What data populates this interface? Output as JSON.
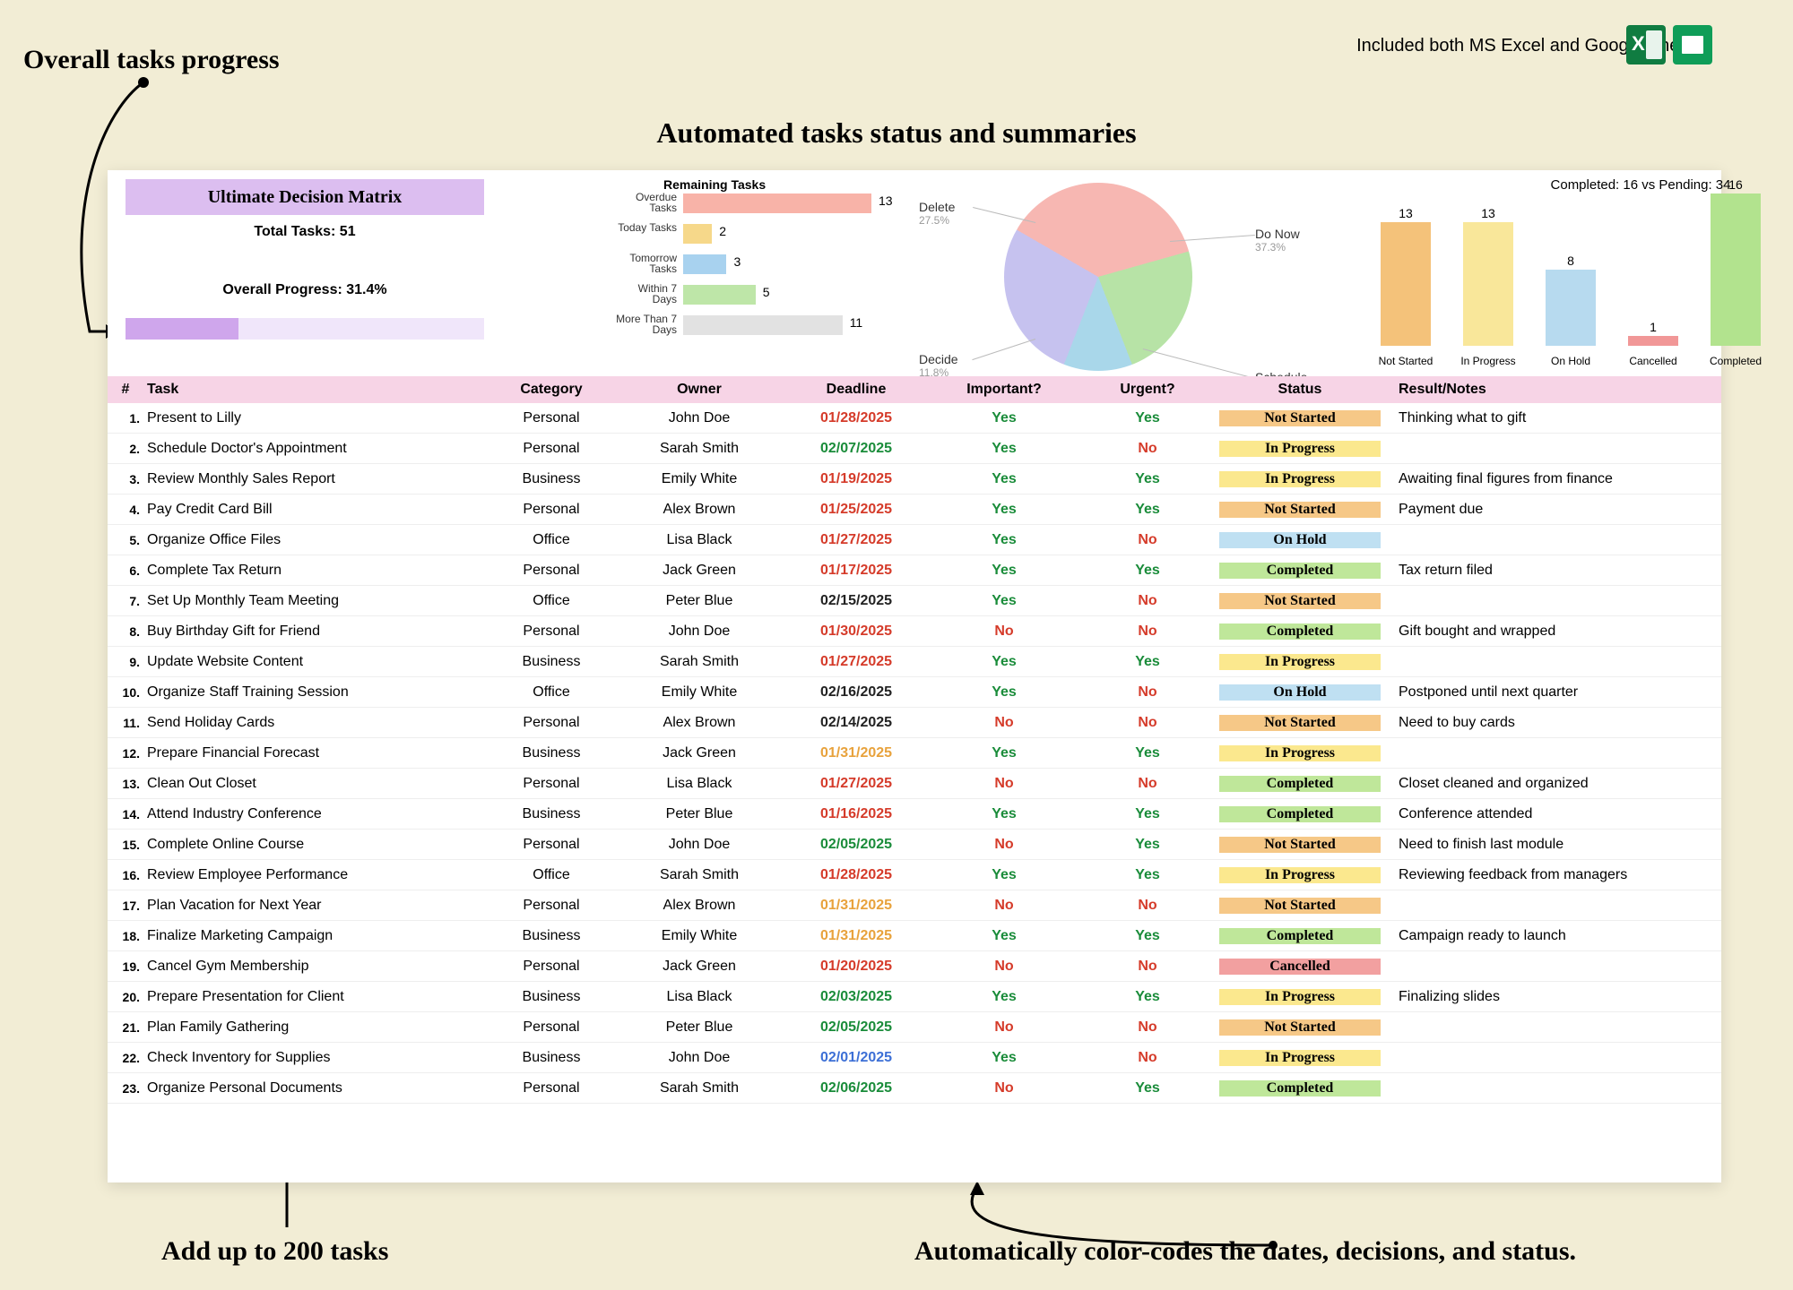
{
  "callouts": {
    "top_left": "Overall tasks progress",
    "title": "Automated tasks status and summaries",
    "bottom_left": "Add up to 200 tasks",
    "bottom_right": "Automatically color-codes the dates, decisions, and status.",
    "top_right_text": "Included both MS Excel and Google Sheets"
  },
  "matrix": {
    "title": "Ultimate Decision Matrix",
    "total_tasks_label": "Total Tasks: 51",
    "overall_progress_label": "Overall Progress: 31.4%",
    "overall_progress_pct": 31.4
  },
  "remaining_tasks": {
    "title": "Remaining Tasks",
    "max": 13,
    "rows": [
      {
        "label": "Overdue\nTasks",
        "value": 13,
        "color": "#f8b3a8"
      },
      {
        "label": "Today Tasks",
        "value": 2,
        "color": "#f6d88a"
      },
      {
        "label": "Tomorrow\nTasks",
        "value": 3,
        "color": "#a8d2ef"
      },
      {
        "label": "Within 7\nDays",
        "value": 5,
        "color": "#bee6a8"
      },
      {
        "label": "More Than 7\nDays",
        "value": 11,
        "color": "#e2e2e2"
      }
    ]
  },
  "pie": {
    "slices": [
      {
        "label": "Do Now",
        "pct": 37.3,
        "color": "#f7b7b2"
      },
      {
        "label": "Schedule",
        "pct": 23.5,
        "color": "#b7e3a6"
      },
      {
        "label": "Decide",
        "pct": 11.8,
        "color": "#a9d7ea"
      },
      {
        "label": "Delete",
        "pct": 27.5,
        "color": "#c6c2ef"
      }
    ]
  },
  "completed_vs_pending": {
    "title": "Completed: 16 vs Pending: 34",
    "max": 16,
    "bars": [
      {
        "label": "Not Started",
        "value": 13,
        "color": "#f4c27a"
      },
      {
        "label": "In Progress",
        "value": 13,
        "color": "#f9e79a"
      },
      {
        "label": "On Hold",
        "value": 8,
        "color": "#b7daef"
      },
      {
        "label": "Cancelled",
        "value": 1,
        "color": "#f19797"
      },
      {
        "label": "Completed",
        "value": 16,
        "color": "#b2e38e"
      }
    ]
  },
  "table": {
    "headers": [
      "#",
      "Task",
      "Category",
      "Owner",
      "Deadline",
      "Important?",
      "Urgent?",
      "Status",
      "Result/Notes"
    ],
    "deadline_colors": {
      "red": "#d53b2a",
      "green": "#1a8c3a",
      "orange": "#e8a23c",
      "blue": "#3c6fd6",
      "black": "#222222"
    },
    "yesno_colors": {
      "Yes": "#1a8c3a",
      "No": "#d53b2a"
    },
    "status_colors": {
      "Not Started": "#f6c887",
      "In Progress": "#fbe88e",
      "On Hold": "#bfe0f2",
      "Completed": "#bfe79a",
      "Cancelled": "#f2a0a0"
    },
    "rows": [
      {
        "n": 1,
        "task": "Present to Lilly",
        "cat": "Personal",
        "owner": "John Doe",
        "dl": "01/28/2025",
        "dlc": "red",
        "imp": "Yes",
        "urg": "Yes",
        "status": "Not Started",
        "notes": "Thinking what to gift"
      },
      {
        "n": 2,
        "task": "Schedule Doctor's Appointment",
        "cat": "Personal",
        "owner": "Sarah Smith",
        "dl": "02/07/2025",
        "dlc": "green",
        "imp": "Yes",
        "urg": "No",
        "status": "In Progress",
        "notes": ""
      },
      {
        "n": 3,
        "task": "Review Monthly Sales Report",
        "cat": "Business",
        "owner": "Emily White",
        "dl": "01/19/2025",
        "dlc": "red",
        "imp": "Yes",
        "urg": "Yes",
        "status": "In Progress",
        "notes": "Awaiting final figures from finance"
      },
      {
        "n": 4,
        "task": "Pay Credit Card Bill",
        "cat": "Personal",
        "owner": "Alex Brown",
        "dl": "01/25/2025",
        "dlc": "red",
        "imp": "Yes",
        "urg": "Yes",
        "status": "Not Started",
        "notes": "Payment due"
      },
      {
        "n": 5,
        "task": "Organize Office Files",
        "cat": "Office",
        "owner": "Lisa Black",
        "dl": "01/27/2025",
        "dlc": "red",
        "imp": "Yes",
        "urg": "No",
        "status": "On Hold",
        "notes": ""
      },
      {
        "n": 6,
        "task": "Complete Tax Return",
        "cat": "Personal",
        "owner": "Jack Green",
        "dl": "01/17/2025",
        "dlc": "red",
        "imp": "Yes",
        "urg": "Yes",
        "status": "Completed",
        "notes": "Tax return filed"
      },
      {
        "n": 7,
        "task": "Set Up Monthly Team Meeting",
        "cat": "Office",
        "owner": "Peter Blue",
        "dl": "02/15/2025",
        "dlc": "black",
        "imp": "Yes",
        "urg": "No",
        "status": "Not Started",
        "notes": ""
      },
      {
        "n": 8,
        "task": "Buy Birthday Gift for Friend",
        "cat": "Personal",
        "owner": "John Doe",
        "dl": "01/30/2025",
        "dlc": "red",
        "imp": "No",
        "urg": "No",
        "status": "Completed",
        "notes": "Gift bought and wrapped"
      },
      {
        "n": 9,
        "task": "Update Website Content",
        "cat": "Business",
        "owner": "Sarah Smith",
        "dl": "01/27/2025",
        "dlc": "red",
        "imp": "Yes",
        "urg": "Yes",
        "status": "In Progress",
        "notes": ""
      },
      {
        "n": 10,
        "task": "Organize Staff Training Session",
        "cat": "Office",
        "owner": "Emily White",
        "dl": "02/16/2025",
        "dlc": "black",
        "imp": "Yes",
        "urg": "No",
        "status": "On Hold",
        "notes": "Postponed until next quarter"
      },
      {
        "n": 11,
        "task": "Send Holiday Cards",
        "cat": "Personal",
        "owner": "Alex Brown",
        "dl": "02/14/2025",
        "dlc": "black",
        "imp": "No",
        "urg": "No",
        "status": "Not Started",
        "notes": "Need to buy cards"
      },
      {
        "n": 12,
        "task": "Prepare Financial Forecast",
        "cat": "Business",
        "owner": "Jack Green",
        "dl": "01/31/2025",
        "dlc": "orange",
        "imp": "Yes",
        "urg": "Yes",
        "status": "In Progress",
        "notes": ""
      },
      {
        "n": 13,
        "task": "Clean Out Closet",
        "cat": "Personal",
        "owner": "Lisa Black",
        "dl": "01/27/2025",
        "dlc": "red",
        "imp": "No",
        "urg": "No",
        "status": "Completed",
        "notes": "Closet cleaned and organized"
      },
      {
        "n": 14,
        "task": "Attend Industry Conference",
        "cat": "Business",
        "owner": "Peter Blue",
        "dl": "01/16/2025",
        "dlc": "red",
        "imp": "Yes",
        "urg": "Yes",
        "status": "Completed",
        "notes": "Conference attended"
      },
      {
        "n": 15,
        "task": "Complete Online Course",
        "cat": "Personal",
        "owner": "John Doe",
        "dl": "02/05/2025",
        "dlc": "green",
        "imp": "No",
        "urg": "Yes",
        "status": "Not Started",
        "notes": "Need to finish last module"
      },
      {
        "n": 16,
        "task": "Review Employee Performance",
        "cat": "Office",
        "owner": "Sarah Smith",
        "dl": "01/28/2025",
        "dlc": "red",
        "imp": "Yes",
        "urg": "Yes",
        "status": "In Progress",
        "notes": "Reviewing feedback from managers"
      },
      {
        "n": 17,
        "task": "Plan Vacation for Next Year",
        "cat": "Personal",
        "owner": "Alex Brown",
        "dl": "01/31/2025",
        "dlc": "orange",
        "imp": "No",
        "urg": "No",
        "status": "Not Started",
        "notes": ""
      },
      {
        "n": 18,
        "task": "Finalize Marketing Campaign",
        "cat": "Business",
        "owner": "Emily White",
        "dl": "01/31/2025",
        "dlc": "orange",
        "imp": "Yes",
        "urg": "Yes",
        "status": "Completed",
        "notes": "Campaign ready to launch"
      },
      {
        "n": 19,
        "task": "Cancel Gym Membership",
        "cat": "Personal",
        "owner": "Jack Green",
        "dl": "01/20/2025",
        "dlc": "red",
        "imp": "No",
        "urg": "No",
        "status": "Cancelled",
        "notes": ""
      },
      {
        "n": 20,
        "task": "Prepare Presentation for Client",
        "cat": "Business",
        "owner": "Lisa Black",
        "dl": "02/03/2025",
        "dlc": "green",
        "imp": "Yes",
        "urg": "Yes",
        "status": "In Progress",
        "notes": "Finalizing slides"
      },
      {
        "n": 21,
        "task": "Plan Family Gathering",
        "cat": "Personal",
        "owner": "Peter Blue",
        "dl": "02/05/2025",
        "dlc": "green",
        "imp": "No",
        "urg": "No",
        "status": "Not Started",
        "notes": ""
      },
      {
        "n": 22,
        "task": "Check Inventory for Supplies",
        "cat": "Business",
        "owner": "John Doe",
        "dl": "02/01/2025",
        "dlc": "blue",
        "imp": "Yes",
        "urg": "No",
        "status": "In Progress",
        "notes": ""
      },
      {
        "n": 23,
        "task": "Organize Personal Documents",
        "cat": "Personal",
        "owner": "Sarah Smith",
        "dl": "02/06/2025",
        "dlc": "green",
        "imp": "No",
        "urg": "Yes",
        "status": "Completed",
        "notes": ""
      }
    ]
  }
}
